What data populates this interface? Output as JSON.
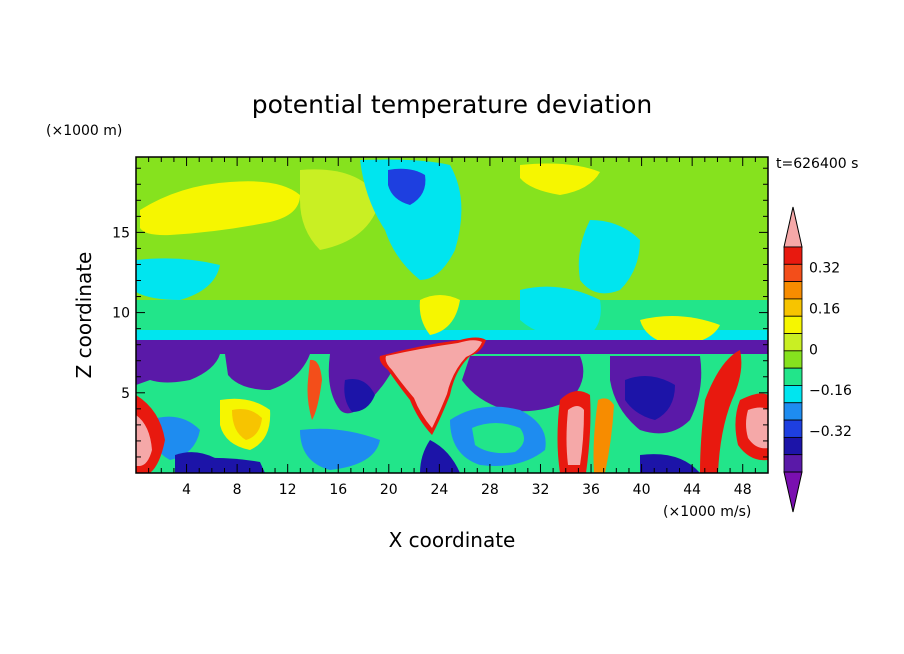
{
  "chart_data": {
    "type": "heatmap",
    "title": "potential temperature deviation",
    "xlabel": "X coordinate",
    "ylabel": "Z coordinate",
    "x_unit": "(×1000 m/s)",
    "y_unit": "(×1000 m)",
    "time_label": "t=626400 s",
    "xlim": [
      0,
      50
    ],
    "ylim": [
      0,
      19.7
    ],
    "x_ticks": [
      4,
      8,
      12,
      16,
      20,
      24,
      28,
      32,
      36,
      40,
      44,
      48
    ],
    "y_ticks": [
      5,
      10,
      15
    ],
    "colorbar": {
      "levels": [
        -0.48,
        -0.4,
        -0.32,
        -0.24,
        -0.16,
        -0.08,
        0,
        0.08,
        0.16,
        0.24,
        0.32,
        0.4
      ],
      "labeled_levels": [
        0.32,
        0.16,
        0,
        -0.16,
        -0.32
      ],
      "colors": [
        "#7a0fb0",
        "#5a19a8",
        "#1c14a8",
        "#1e3fe0",
        "#1e8cf0",
        "#00e5ef",
        "#22e58a",
        "#86e21e",
        "#c9ef23",
        "#f6f600",
        "#f7c400",
        "#f78c00",
        "#f34e1a",
        "#e8190f",
        "#f5a8a8"
      ],
      "extend": "both"
    },
    "regions": [
      {
        "desc": "upper layer mostly near zero",
        "z_range": [
          8,
          19.7
        ],
        "value_range": [
          -0.08,
          0.16
        ]
      },
      {
        "desc": "warm band upper left",
        "x": 6,
        "z": 16.5,
        "value": 0.2
      },
      {
        "desc": "cold spot top center",
        "x": 22,
        "z": 18.5,
        "value": -0.2
      },
      {
        "desc": "cold tropopause band",
        "z": 7.5,
        "value": -0.35
      },
      {
        "desc": "warm intrusion",
        "x": 23,
        "z": 5.5,
        "value": 0.42
      },
      {
        "desc": "warm columns lower right",
        "x": 34,
        "z": 2.5,
        "value": 0.42
      },
      {
        "desc": "warm corner lower right",
        "x": 49,
        "z": 3,
        "value": 0.42
      },
      {
        "desc": "warm corner lower left",
        "x": 0.5,
        "z": 2,
        "value": 0.42
      }
    ]
  }
}
